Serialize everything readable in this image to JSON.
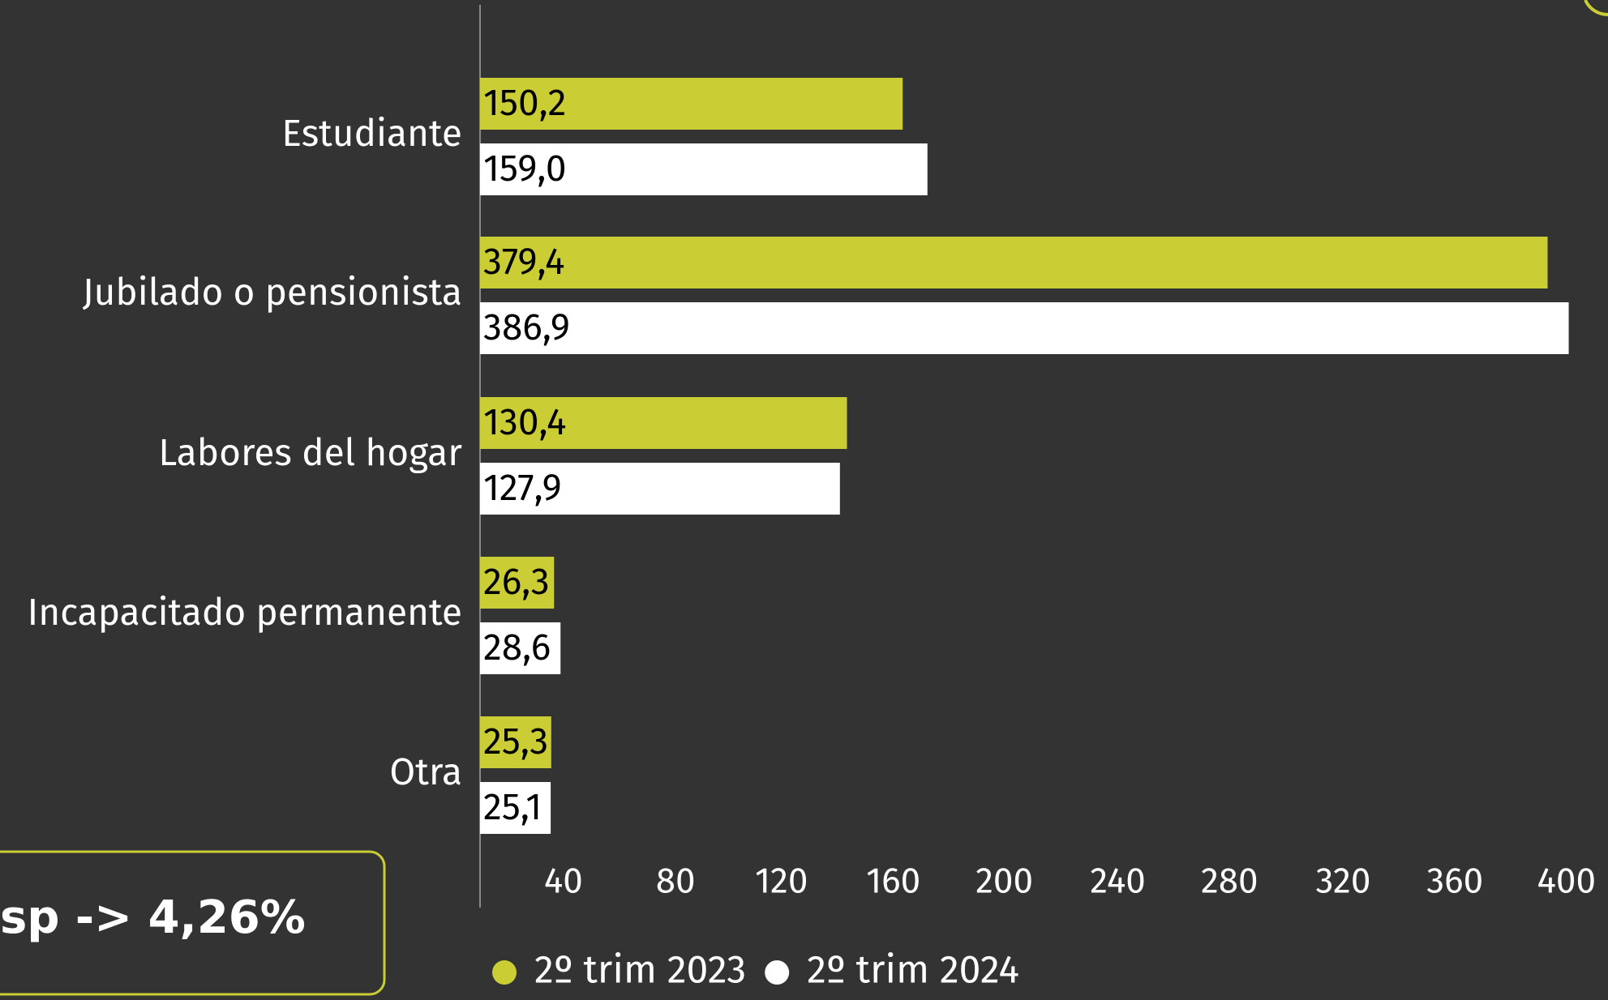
{
  "chart_data": {
    "type": "bar",
    "orientation": "horizontal",
    "categories": [
      "Estudiante",
      "Jubilado o pensionista",
      "Labores del hogar",
      "Incapacitado permanente",
      "Otra"
    ],
    "series": [
      {
        "name": "2º trim 2023",
        "color": "#cbcd35",
        "values": [
          150.2,
          379.4,
          130.4,
          26.3,
          25.3
        ],
        "value_labels": [
          "150,2",
          "379,4",
          "130,4",
          "26,3",
          "25,3"
        ]
      },
      {
        "name": "2º trim 2024",
        "color": "#ffffff",
        "values": [
          159.0,
          386.9,
          127.9,
          28.6,
          25.1
        ],
        "value_labels": [
          "159,0",
          "386,9",
          "127,9",
          "28,6",
          "25,1"
        ]
      }
    ],
    "xlim": [
      0,
      400
    ],
    "xticks": [
      40,
      80,
      120,
      160,
      200,
      240,
      280,
      320,
      360,
      400
    ],
    "legend": "bottom",
    "annotation": "sp -> 4,26%"
  }
}
